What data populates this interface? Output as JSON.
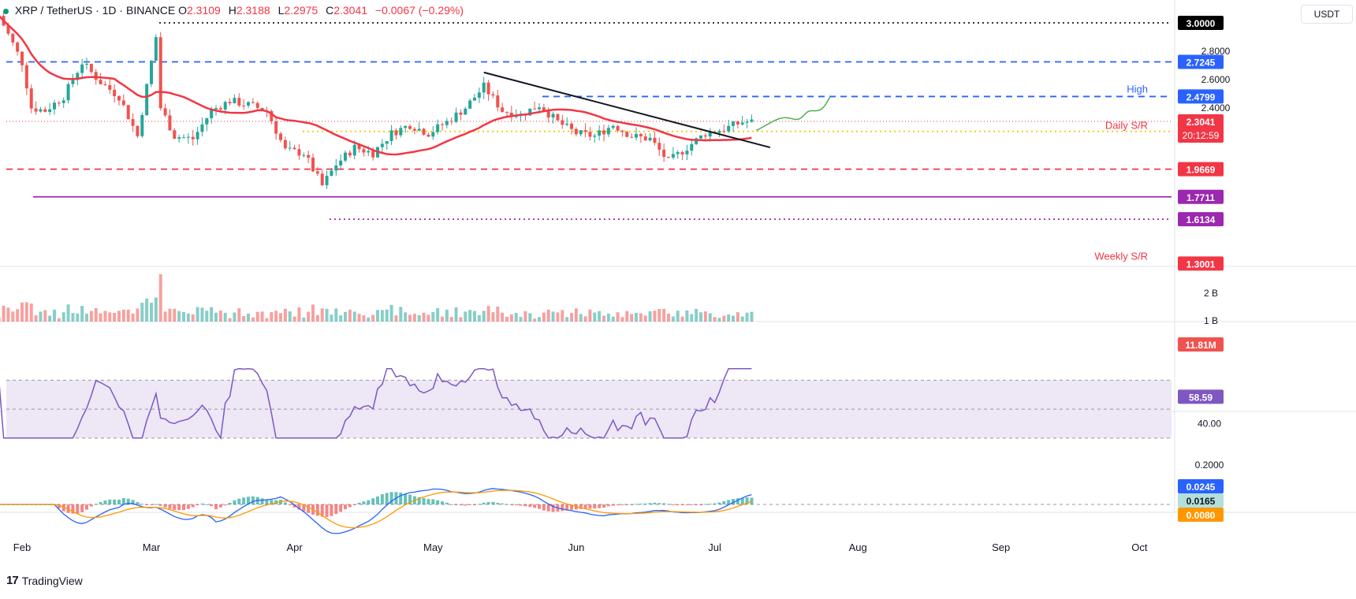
{
  "header": {
    "symbol": "XRP / TetherUS · 1D · BINANCE",
    "open_label": "O",
    "open_value": "2.3109",
    "high_label": "H",
    "high_value": "2.3188",
    "low_label": "L",
    "low_value": "2.2975",
    "close_label": "C",
    "close_value": "2.3041",
    "change": "−0.0067 (−0.29%)",
    "currency": "USDT"
  },
  "branding": {
    "logo": "17",
    "name": "TradingView"
  },
  "chart_data": [
    {
      "type": "candlestick",
      "panel": "price",
      "y_ticks": [
        "2.8000",
        "2.6000",
        "2.4000"
      ],
      "ylim": [
        1.28,
        3.05
      ],
      "x_ticks": [
        "Feb",
        "Mar",
        "Apr",
        "May",
        "Jun",
        "Jul",
        "Aug",
        "Sep",
        "Oct"
      ],
      "ohlc_close_series": {
        "dates": [
          "Jan 27",
          "Feb 1",
          "Feb 3",
          "Feb 6",
          "Feb 10",
          "Feb 14",
          "Feb 18",
          "Feb 22",
          "Feb 26",
          "Mar 2",
          "Mar 3",
          "Mar 6",
          "Mar 10",
          "Mar 14",
          "Mar 18",
          "Mar 22",
          "Mar 26",
          "Mar 30",
          "Apr 3",
          "Apr 7",
          "Apr 10",
          "Apr 14",
          "Apr 18",
          "Apr 22",
          "Apr 26",
          "Apr 30",
          "May 4",
          "May 8",
          "May 12",
          "May 16",
          "May 20",
          "May 24",
          "May 28",
          "Jun 1",
          "Jun 5",
          "Jun 9",
          "Jun 13",
          "Jun 17",
          "Jun 21",
          "Jun 25",
          "Jun 29",
          "Jul 3",
          "Jul 7",
          "Jul 9"
        ],
        "close": [
          3.05,
          2.72,
          2.4,
          2.38,
          2.48,
          2.72,
          2.58,
          2.48,
          2.2,
          2.9,
          2.4,
          2.2,
          2.18,
          2.38,
          2.45,
          2.42,
          2.38,
          2.1,
          2.08,
          1.85,
          2.0,
          2.12,
          2.08,
          2.22,
          2.28,
          2.22,
          2.3,
          2.4,
          2.55,
          2.38,
          2.35,
          2.42,
          2.3,
          2.22,
          2.2,
          2.28,
          2.2,
          2.18,
          2.02,
          2.12,
          2.22,
          2.25,
          2.3,
          2.3
        ]
      },
      "moving_average": {
        "color": "#f23645",
        "start": 2.6,
        "end": 2.26
      },
      "levels": [
        {
          "value": 3.0,
          "label": "3.0000",
          "style": "dotted",
          "color": "#131722"
        },
        {
          "value": 2.7245,
          "label": "2.7245",
          "style": "dashed",
          "color": "#2962ff"
        },
        {
          "value": 2.4799,
          "label": "2.4799",
          "style": "dashed",
          "color": "#2962ff",
          "annotation": "High"
        },
        {
          "value": 2.233,
          "label": "2.2330",
          "style": "dotted",
          "color": "#f7c600"
        },
        {
          "value": 2.2221,
          "label": "2.2221",
          "color": "#f23645",
          "annotation": "Daily S/R"
        },
        {
          "value": 1.9669,
          "label": "1.9669",
          "style": "dashed",
          "color": "#f23645"
        },
        {
          "value": 1.7711,
          "label": "1.7711",
          "style": "solid",
          "color": "#9c27b0"
        },
        {
          "value": 1.6134,
          "label": "1.6134",
          "style": "dotted",
          "color": "#9c27b0"
        },
        {
          "value": 1.3001,
          "label": "1.3001",
          "color": "#f23645",
          "annotation": "Weekly S/R"
        }
      ],
      "last_price": {
        "value": 2.3041,
        "label": "2.3041",
        "countdown": "20:12:59",
        "color": "#f23645"
      },
      "trendline": {
        "from": [
          "May 12",
          2.65
        ],
        "to": [
          "Jul 13",
          2.12
        ],
        "color": "#131722"
      },
      "projection": {
        "from": [
          "Jul 10",
          2.24
        ],
        "to": [
          "Jul 26",
          2.48
        ],
        "color": "#4caf50"
      }
    },
    {
      "type": "bar",
      "panel": "volume",
      "y_ticks": [
        "2 B",
        "1 B"
      ],
      "last_label": "11.81M",
      "colors": {
        "up": "#26a69a",
        "down": "#ef5350"
      }
    },
    {
      "type": "line",
      "panel": "rsi",
      "y_ticks": [
        "40.00"
      ],
      "last_label": "58.59",
      "band": [
        30,
        70
      ],
      "colors": {
        "line": "#7e57c2",
        "band": "#ede7f6"
      }
    },
    {
      "type": "line",
      "panel": "macd",
      "y_ticks": [
        "0.2000"
      ],
      "labels": {
        "macd": "0.0245",
        "histogram": "0.0165",
        "signal": "0.0080"
      },
      "colors": {
        "macd": "#2962ff",
        "signal": "#ff9800",
        "hist_up": "#26a69a",
        "hist_down": "#ef5350"
      }
    }
  ]
}
